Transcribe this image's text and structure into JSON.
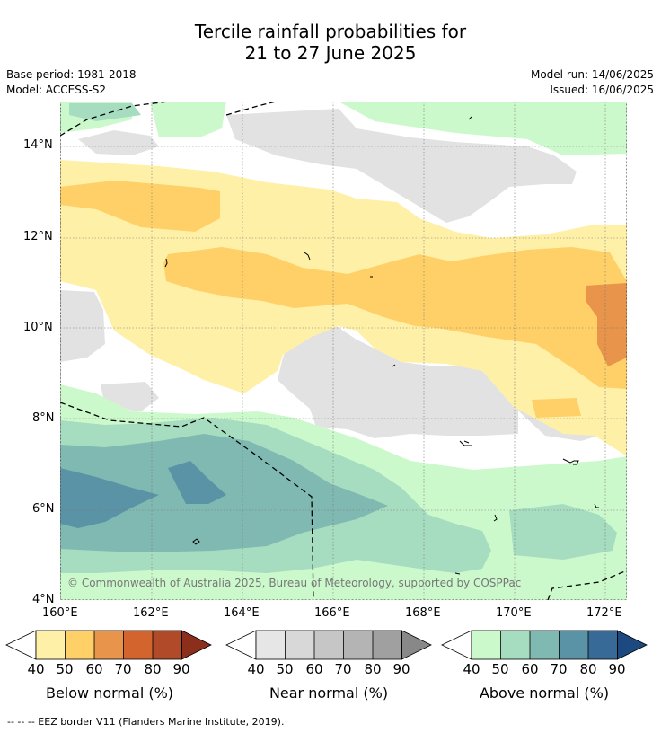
{
  "title_line1": "Tercile rainfall probabilities for",
  "title_line2": "21 to 27 June 2025",
  "base_period": "Base period: 1981-2018",
  "model": "Model: ACCESS-S2",
  "model_run": "Model run: 14/06/2025",
  "issued": "Issued: 16/06/2025",
  "lat_labels": [
    "14°N",
    "12°N",
    "10°N",
    "8°N",
    "6°N",
    "4°N"
  ],
  "lon_labels": [
    "160°E",
    "162°E",
    "164°E",
    "166°E",
    "168°E",
    "170°E",
    "172°E"
  ],
  "copyright": "© Commonwealth of Australia 2025, Bureau of Meteorology, supported by COSPPac",
  "legends": [
    {
      "label": "Below normal (%)",
      "ticks": [
        "40",
        "50",
        "60",
        "70",
        "80",
        "90"
      ],
      "colors": [
        "#fff0a8",
        "#ffd068",
        "#e8944a",
        "#d4642e",
        "#b04a28",
        "#8c2e1c"
      ]
    },
    {
      "label": "Near normal (%)",
      "ticks": [
        "40",
        "50",
        "60",
        "70",
        "80",
        "90"
      ],
      "colors": [
        "#e6e6e6",
        "#d8d8d8",
        "#c6c6c6",
        "#b4b4b4",
        "#a0a0a0",
        "#888888"
      ]
    },
    {
      "label": "Above normal (%)",
      "ticks": [
        "40",
        "50",
        "60",
        "70",
        "80",
        "90"
      ],
      "colors": [
        "#ccf9cc",
        "#a6dcbf",
        "#80b8b2",
        "#5a93a5",
        "#376a96",
        "#1c4a80"
      ]
    }
  ],
  "footer": "--  --  -- EEZ border V11 (Flanders Marine Institute, 2019)."
}
